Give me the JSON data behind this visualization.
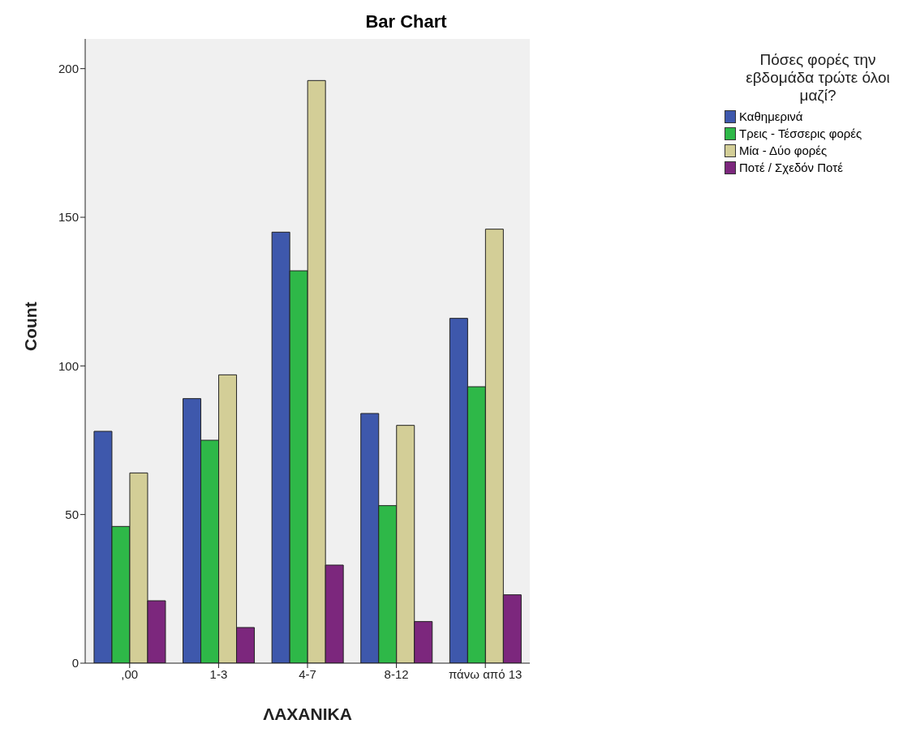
{
  "chart_data": {
    "type": "bar",
    "title": "Bar Chart",
    "xlabel": "ΛΑΧΑΝΙΚΑ",
    "ylabel": "Count",
    "legend_title": "Πόσες φορές την εβδομάδα τρώτε όλοι μαζί?",
    "categories": [
      ",00",
      "1-3",
      "4-7",
      "8-12",
      "πάνω από 13"
    ],
    "series": [
      {
        "name": "Καθημερινά",
        "color": "#3e58ac",
        "values": [
          78,
          89,
          145,
          84,
          116
        ]
      },
      {
        "name": "Τρεις - Τέσσερις φορές",
        "color": "#2eb848",
        "values": [
          46,
          75,
          132,
          53,
          93
        ]
      },
      {
        "name": "Μία - Δύο φορές",
        "color": "#d3ce97",
        "values": [
          64,
          97,
          196,
          80,
          146
        ]
      },
      {
        "name": "Ποτέ / Σχεδόν Ποτέ",
        "color": "#7c277d",
        "values": [
          21,
          12,
          33,
          14,
          23
        ]
      }
    ],
    "ylim": [
      0,
      210
    ],
    "yticks": [
      0,
      50,
      100,
      150,
      200
    ],
    "grid": false,
    "legend": "top right"
  }
}
